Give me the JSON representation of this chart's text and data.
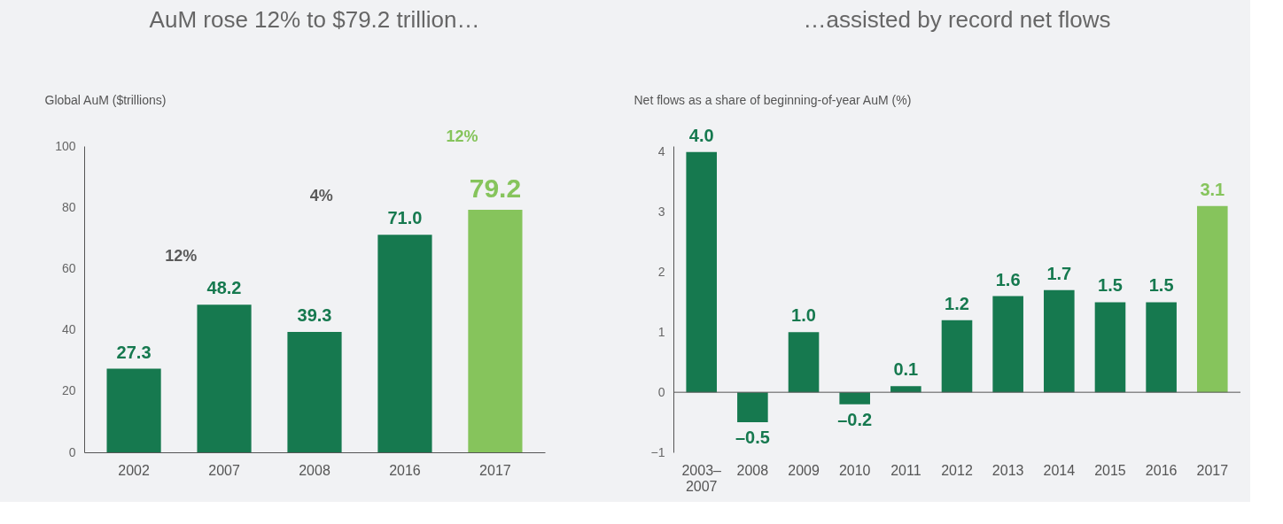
{
  "chart_data": [
    {
      "type": "bar",
      "title": "AuM rose 12% to $79.2 trillion…",
      "ylabel": "Global AuM ($trillions)",
      "categories": [
        "2002",
        "2007",
        "2008",
        "2016",
        "2017"
      ],
      "values": [
        27.3,
        48.2,
        39.3,
        71.0,
        79.2
      ],
      "colors": [
        "#16794f",
        "#16794f",
        "#16794f",
        "#16794f",
        "#86c45c"
      ],
      "ylim": [
        0,
        100
      ],
      "yticks": [
        0,
        20,
        40,
        60,
        80,
        100
      ],
      "grid": false,
      "value_labels": [
        "27.3",
        "48.2",
        "39.3",
        "71.0",
        "79.2"
      ],
      "annotations": [
        "12%",
        "4%",
        "12%"
      ]
    },
    {
      "type": "bar",
      "title": "…assisted by record net flows",
      "ylabel": "Net flows as a share of beginning-of-year AuM (%)",
      "categories": [
        "2003–2007",
        "2008",
        "2009",
        "2010",
        "2011",
        "2012",
        "2013",
        "2014",
        "2015",
        "2016",
        "2017"
      ],
      "values": [
        4.0,
        -0.5,
        1.0,
        -0.2,
        0.1,
        1.2,
        1.6,
        1.7,
        1.5,
        1.5,
        3.1
      ],
      "colors": [
        "#16794f",
        "#16794f",
        "#16794f",
        "#16794f",
        "#16794f",
        "#16794f",
        "#16794f",
        "#16794f",
        "#16794f",
        "#16794f",
        "#86c45c"
      ],
      "ylim": [
        -1,
        4.1
      ],
      "yticks": [
        -1,
        0,
        1,
        2,
        3,
        4
      ],
      "grid": false,
      "ref_lines": [
        {
          "axis": "y",
          "value": 0,
          "color": "#555555"
        }
      ],
      "value_labels": [
        "4.0",
        "–0.5",
        "1.0",
        "–0.2",
        "0.1",
        "1.2",
        "1.6",
        "1.7",
        "1.5",
        "1.5",
        "3.1"
      ]
    }
  ]
}
